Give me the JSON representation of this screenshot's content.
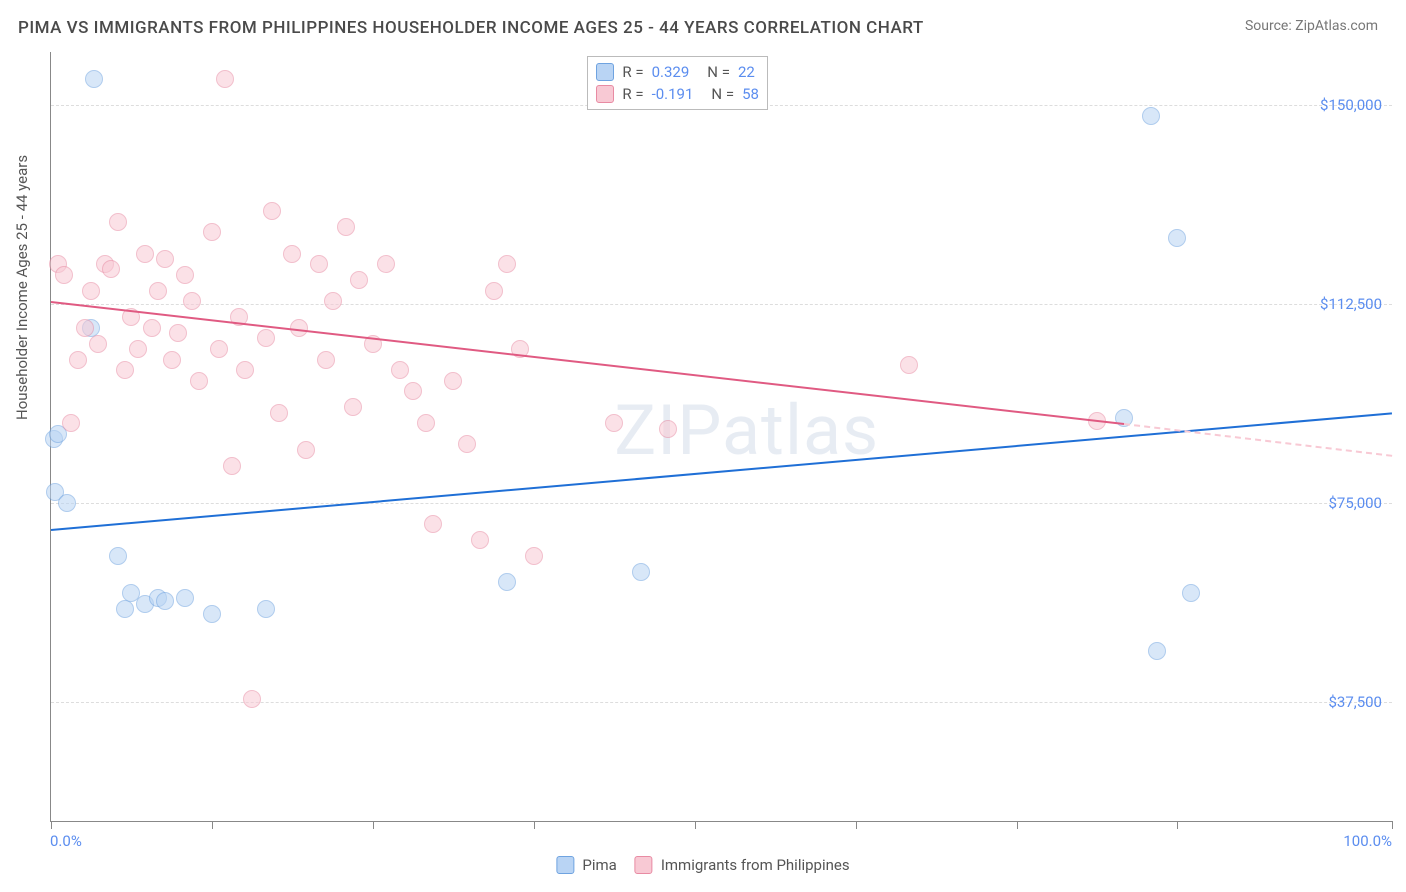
{
  "header": {
    "title": "PIMA VS IMMIGRANTS FROM PHILIPPINES HOUSEHOLDER INCOME AGES 25 - 44 YEARS CORRELATION CHART",
    "source_label": "Source: ",
    "source_name": "ZipAtlas.com"
  },
  "watermark": "ZIPatlas",
  "chart": {
    "type": "scatter",
    "ylabel": "Householder Income Ages 25 - 44 years",
    "xlim": [
      0,
      100
    ],
    "ylim": [
      15000,
      160000
    ],
    "yticks": [
      37500,
      75000,
      112500,
      150000
    ],
    "ytick_labels": [
      "$37,500",
      "$75,000",
      "$112,500",
      "$150,000"
    ],
    "xticks": [
      0,
      12,
      24,
      36,
      48,
      60,
      72,
      84,
      100
    ],
    "x_start_label": "0.0%",
    "x_end_label": "100.0%",
    "grid_color": "#dddddd",
    "background_color": "#ffffff",
    "axis_color": "#888888",
    "label_fontsize": 15,
    "tick_fontcolor": "#5b8def",
    "marker_radius": 9,
    "marker_opacity": 0.55,
    "marker_border_width": 1.2,
    "series": [
      {
        "name": "Pima",
        "fill": "#b9d4f4",
        "stroke": "#6fa3e0",
        "line_color": "#1f6fd6",
        "R": "0.329",
        "N": "22",
        "trend": {
          "x1": 0,
          "y1": 70000,
          "x2": 100,
          "y2": 92000,
          "dash_from_x": 100
        },
        "points": [
          [
            0.2,
            87000
          ],
          [
            0.5,
            88000
          ],
          [
            0.3,
            77000
          ],
          [
            1.2,
            75000
          ],
          [
            3.0,
            108000
          ],
          [
            3.2,
            155000
          ],
          [
            5.0,
            65000
          ],
          [
            5.5,
            55000
          ],
          [
            6.0,
            58000
          ],
          [
            7.0,
            56000
          ],
          [
            8.0,
            57000
          ],
          [
            8.5,
            56500
          ],
          [
            10.0,
            57000
          ],
          [
            12.0,
            54000
          ],
          [
            16.0,
            55000
          ],
          [
            34.0,
            60000
          ],
          [
            44.0,
            62000
          ],
          [
            80.0,
            91000
          ],
          [
            82.0,
            148000
          ],
          [
            84.0,
            125000
          ],
          [
            85.0,
            58000
          ],
          [
            82.5,
            47000
          ]
        ]
      },
      {
        "name": "Immigrants from Philippines",
        "fill": "#f8c9d4",
        "stroke": "#e88ba3",
        "line_color": "#e05a82",
        "R": "-0.191",
        "N": "58",
        "trend": {
          "x1": 0,
          "y1": 113000,
          "x2": 80,
          "y2": 90000,
          "dash_from_x": 80,
          "dash_x2": 100,
          "dash_y2": 84000
        },
        "points": [
          [
            0.5,
            120000
          ],
          [
            1.0,
            118000
          ],
          [
            1.5,
            90000
          ],
          [
            2.0,
            102000
          ],
          [
            2.5,
            108000
          ],
          [
            3.0,
            115000
          ],
          [
            3.5,
            105000
          ],
          [
            4.0,
            120000
          ],
          [
            4.5,
            119000
          ],
          [
            5.0,
            128000
          ],
          [
            5.5,
            100000
          ],
          [
            6.0,
            110000
          ],
          [
            6.5,
            104000
          ],
          [
            7.0,
            122000
          ],
          [
            7.5,
            108000
          ],
          [
            8.0,
            115000
          ],
          [
            8.5,
            121000
          ],
          [
            9.0,
            102000
          ],
          [
            9.5,
            107000
          ],
          [
            10.0,
            118000
          ],
          [
            10.5,
            113000
          ],
          [
            11.0,
            98000
          ],
          [
            12.0,
            126000
          ],
          [
            12.5,
            104000
          ],
          [
            13.0,
            155000
          ],
          [
            13.5,
            82000
          ],
          [
            14.0,
            110000
          ],
          [
            14.5,
            100000
          ],
          [
            15.0,
            38000
          ],
          [
            16.0,
            106000
          ],
          [
            16.5,
            130000
          ],
          [
            17.0,
            92000
          ],
          [
            18.0,
            122000
          ],
          [
            18.5,
            108000
          ],
          [
            19.0,
            85000
          ],
          [
            20.0,
            120000
          ],
          [
            20.5,
            102000
          ],
          [
            21.0,
            113000
          ],
          [
            22.0,
            127000
          ],
          [
            22.5,
            93000
          ],
          [
            23.0,
            117000
          ],
          [
            24.0,
            105000
          ],
          [
            25.0,
            120000
          ],
          [
            26.0,
            100000
          ],
          [
            27.0,
            96000
          ],
          [
            28.0,
            90000
          ],
          [
            28.5,
            71000
          ],
          [
            30.0,
            98000
          ],
          [
            31.0,
            86000
          ],
          [
            32.0,
            68000
          ],
          [
            33.0,
            115000
          ],
          [
            34.0,
            120000
          ],
          [
            35.0,
            104000
          ],
          [
            36.0,
            65000
          ],
          [
            42.0,
            90000
          ],
          [
            46.0,
            89000
          ],
          [
            64.0,
            101000
          ],
          [
            78.0,
            90500
          ]
        ]
      }
    ]
  },
  "stats_legend": {
    "r_label": "R  =",
    "n_label": "N  ="
  },
  "bottom_legend": {
    "items": [
      "Pima",
      "Immigrants from Philippines"
    ]
  }
}
